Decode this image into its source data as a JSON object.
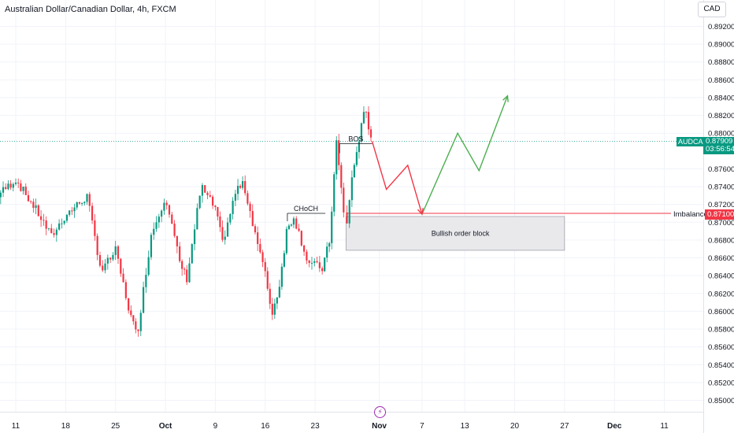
{
  "header": {
    "symbol_title": "Australian Dollar/Canadian Dollar, 4h, FXCM",
    "currency_button": "CAD"
  },
  "price_axis": {
    "ticks": [
      "0.89200",
      "0.89000",
      "0.88800",
      "0.88600",
      "0.88400",
      "0.88200",
      "0.88000",
      "0.87600",
      "0.87400",
      "0.87200",
      "0.87000",
      "0.86800",
      "0.86600",
      "0.86400",
      "0.86200",
      "0.86000",
      "0.85800",
      "0.85600",
      "0.85400",
      "0.85200",
      "0.85000"
    ],
    "last_price": "0.87909",
    "countdown": "03:56:54",
    "symbol_tag": "AUDCAD",
    "imbalance_price": "0.87100",
    "imbalance_label": "Imbalance"
  },
  "time_axis": {
    "labels": [
      "11",
      "18",
      "25",
      "Oct",
      "9",
      "16",
      "23",
      "Nov",
      "7",
      "13",
      "20",
      "27",
      "Dec",
      "11"
    ]
  },
  "annotations": {
    "bos": "BOS",
    "choch": "CHoCH",
    "order_block": "Bullish order block"
  },
  "colors": {
    "up": "#089981",
    "down": "#f23645",
    "projection_down": "#f23645",
    "projection_up": "#4caf50",
    "order_block_fill": "#e9e9ec"
  },
  "chart_data": {
    "type": "candlestick",
    "title": "Australian Dollar/Canadian Dollar, 4h, FXCM",
    "ylim": [
      0.8495,
      0.8935
    ],
    "anchors": [
      {
        "x": "Sep 8",
        "price": 0.8727
      },
      {
        "x": "Sep 11",
        "price": 0.8748
      },
      {
        "x": "Sep 14",
        "price": 0.8712
      },
      {
        "x": "Sep 16",
        "price": 0.8684
      },
      {
        "x": "Sep 18",
        "price": 0.8708
      },
      {
        "x": "Sep 21",
        "price": 0.8729
      },
      {
        "x": "Sep 23",
        "price": 0.8645
      },
      {
        "x": "Sep 25",
        "price": 0.8668
      },
      {
        "x": "Sep 27",
        "price": 0.8598
      },
      {
        "x": "Sep 28",
        "price": 0.8572
      },
      {
        "x": "Sep 30",
        "price": 0.8686
      },
      {
        "x": "Oct 2",
        "price": 0.873
      },
      {
        "x": "Oct 4",
        "price": 0.8655
      },
      {
        "x": "Oct 5",
        "price": 0.8637
      },
      {
        "x": "Oct 7",
        "price": 0.874
      },
      {
        "x": "Oct 9",
        "price": 0.8715
      },
      {
        "x": "Oct 10",
        "price": 0.8677
      },
      {
        "x": "Oct 12",
        "price": 0.8738
      },
      {
        "x": "Oct 13",
        "price": 0.8742
      },
      {
        "x": "Oct 16",
        "price": 0.8641
      },
      {
        "x": "Oct 17",
        "price": 0.8597
      },
      {
        "x": "Oct 18",
        "price": 0.863
      },
      {
        "x": "Oct 19",
        "price": 0.869
      },
      {
        "x": "Oct 20",
        "price": 0.8707
      },
      {
        "x": "Oct 22",
        "price": 0.8655
      },
      {
        "x": "Oct 24",
        "price": 0.8648
      },
      {
        "x": "Oct 25",
        "price": 0.8678
      },
      {
        "x": "Oct 26",
        "price": 0.879
      },
      {
        "x": "Oct 27",
        "price": 0.871
      },
      {
        "x": "Oct 27",
        "price": 0.867
      },
      {
        "x": "Oct 28",
        "price": 0.874
      },
      {
        "x": "Oct 29",
        "price": 0.8788
      },
      {
        "x": "Oct 30",
        "price": 0.8826
      },
      {
        "x": "Oct 31",
        "price": 0.8791
      }
    ],
    "choch_level": 0.871,
    "bos_level": 0.879,
    "order_block": {
      "from": "Oct 27",
      "to": "Nov 27",
      "top": 0.87065,
      "bottom": 0.86685
    },
    "imbalance_level": 0.871,
    "last_price": 0.87909,
    "projection_bearish": [
      [
        "Oct 31",
        0.8791
      ],
      [
        "Nov 2",
        0.8737
      ],
      [
        "Nov 5",
        0.8764
      ],
      [
        "Nov 7",
        0.8709
      ]
    ],
    "projection_bullish": [
      [
        "Nov 7",
        0.8709
      ],
      [
        "Nov 12",
        0.88
      ],
      [
        "Nov 15",
        0.8758
      ],
      [
        "Nov 19",
        0.8842
      ]
    ]
  }
}
